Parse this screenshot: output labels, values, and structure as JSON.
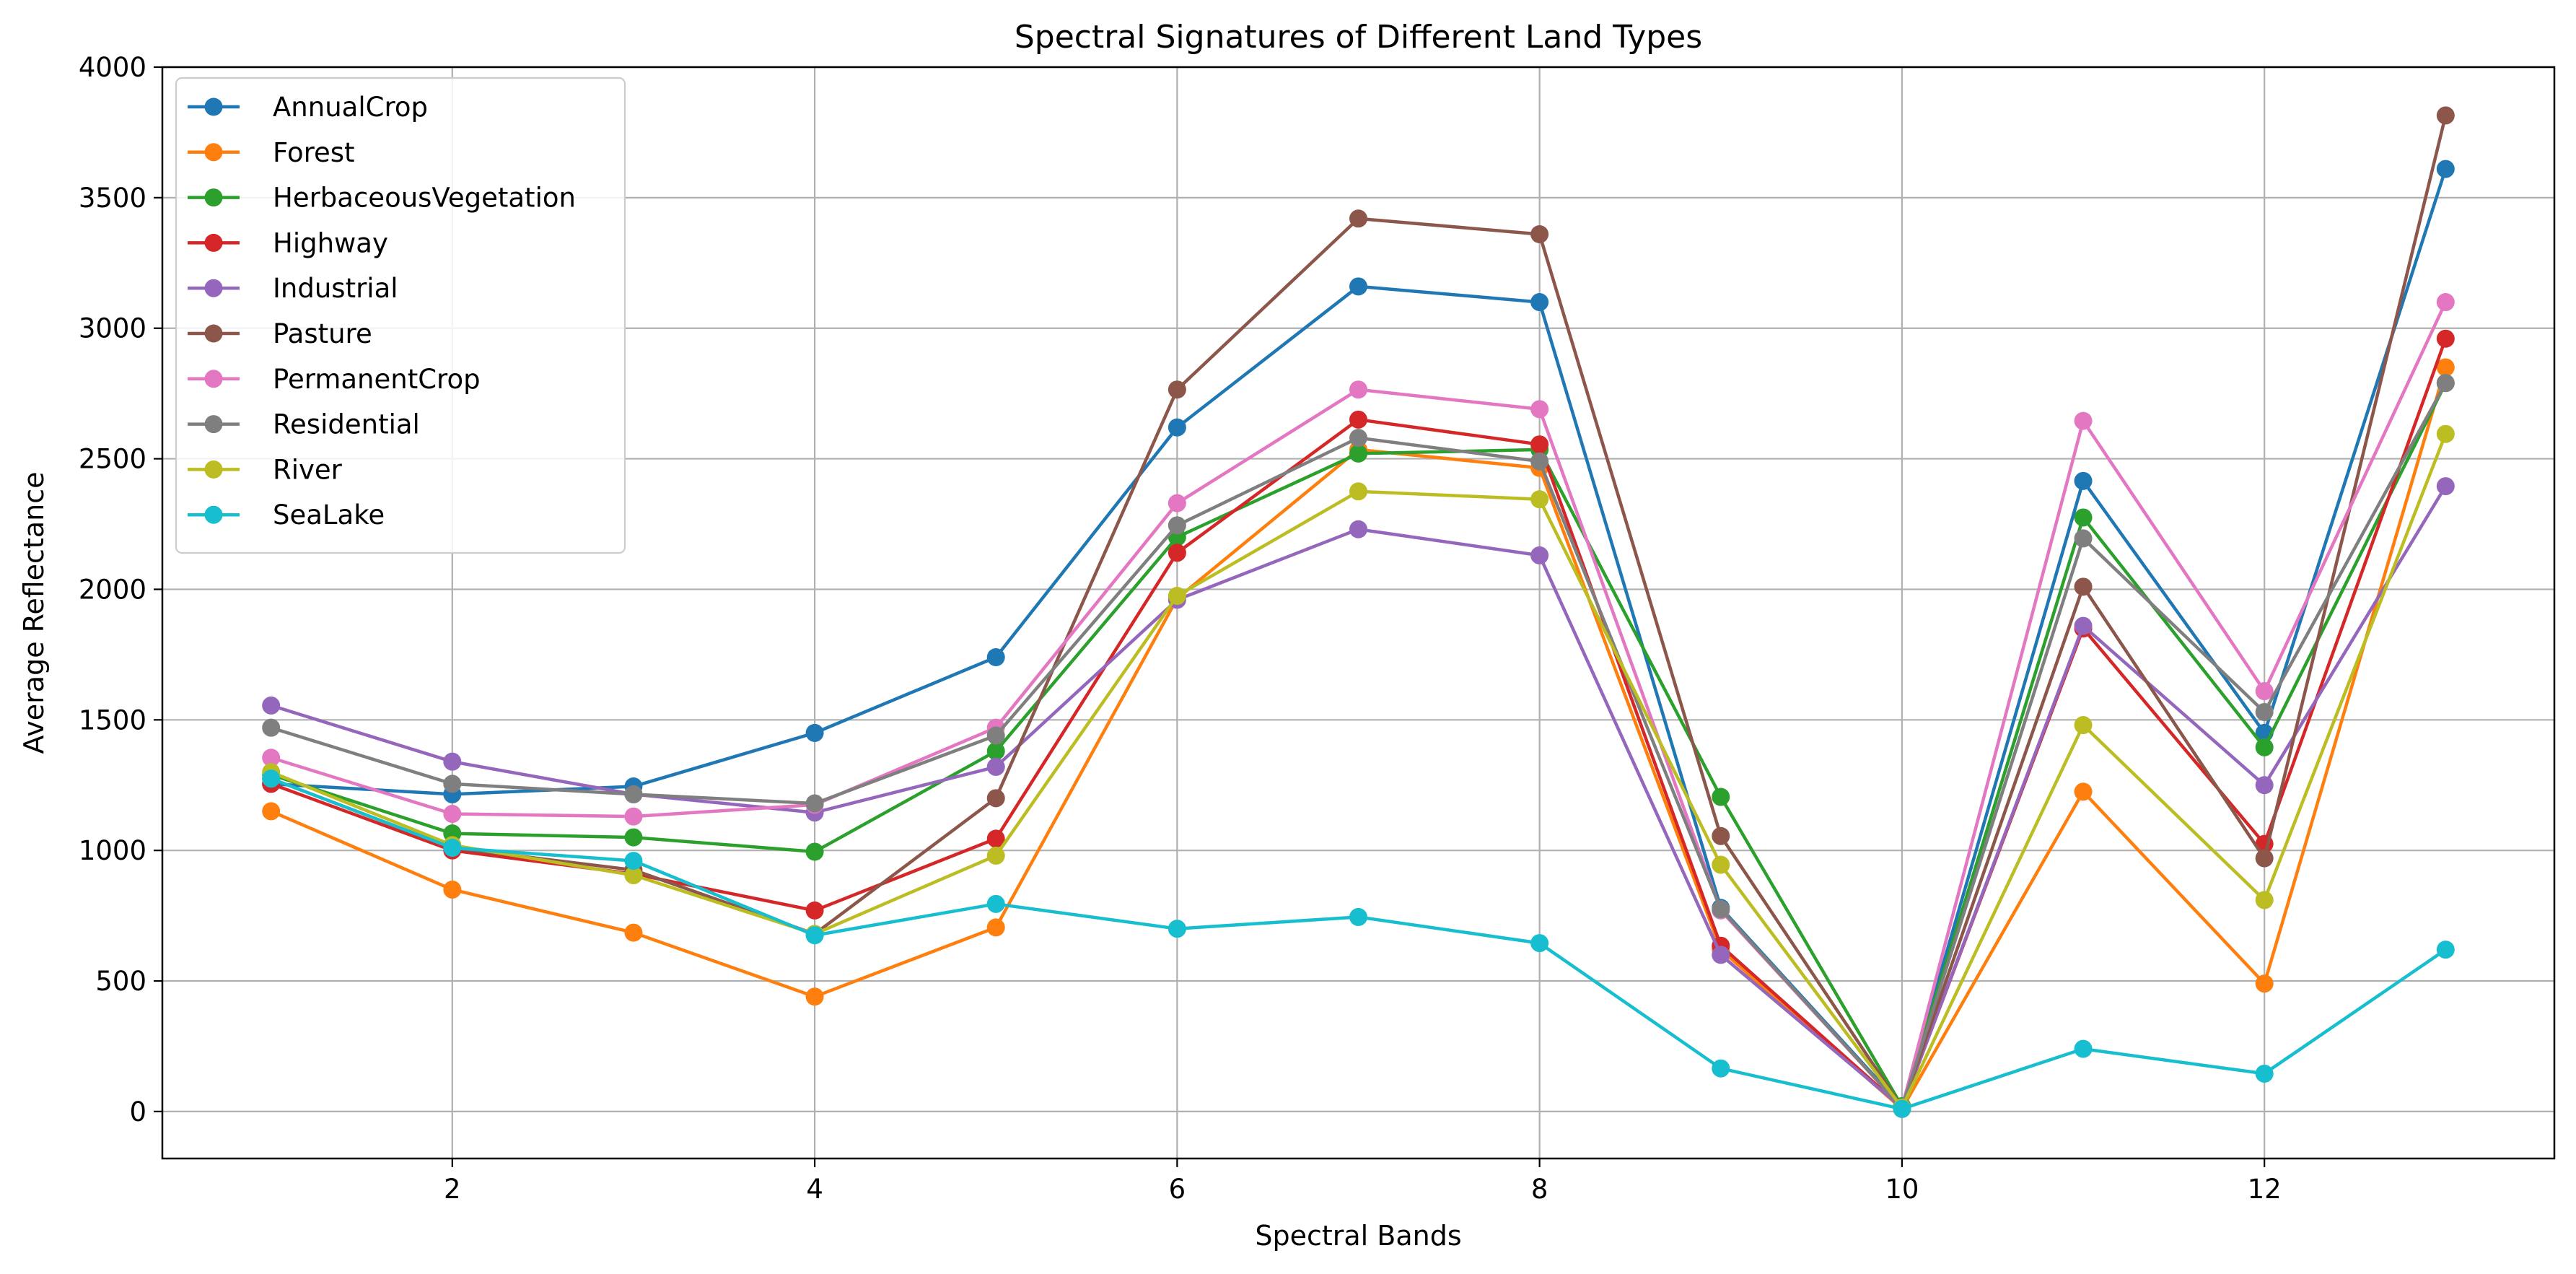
{
  "chart_data": {
    "type": "line",
    "title": "Spectral Signatures of Different Land Types",
    "xlabel": "Spectral Bands",
    "ylabel": "Average Reflectance",
    "xlim": [
      0.4,
      13.6
    ],
    "ylim": [
      -180,
      4000
    ],
    "xticks": [
      2,
      4,
      6,
      8,
      10,
      12
    ],
    "yticks": [
      0,
      500,
      1000,
      1500,
      2000,
      2500,
      3000,
      3500,
      4000
    ],
    "grid": true,
    "legend_position": "top-left",
    "x": [
      1,
      2,
      3,
      4,
      5,
      6,
      7,
      8,
      9,
      10,
      11,
      12,
      13
    ],
    "series": [
      {
        "name": "AnnualCrop",
        "color": "#1f77b4",
        "values": [
          1255,
          1215,
          1245,
          1450,
          1740,
          2620,
          3160,
          3100,
          780,
          20,
          2415,
          1450,
          3610
        ]
      },
      {
        "name": "Forest",
        "color": "#ff7f0e",
        "values": [
          1150,
          850,
          685,
          440,
          705,
          1965,
          2535,
          2465,
          620,
          10,
          1225,
          490,
          2850
        ]
      },
      {
        "name": "HerbaceousVegetation",
        "color": "#2ca02c",
        "values": [
          1290,
          1065,
          1050,
          995,
          1380,
          2200,
          2520,
          2535,
          1205,
          20,
          2275,
          1395,
          2790
        ]
      },
      {
        "name": "Highway",
        "color": "#d62728",
        "values": [
          1255,
          1000,
          910,
          770,
          1045,
          2140,
          2650,
          2555,
          635,
          15,
          1850,
          1025,
          2960
        ]
      },
      {
        "name": "Industrial",
        "color": "#9467bd",
        "values": [
          1555,
          1340,
          1215,
          1145,
          1320,
          1960,
          2230,
          2130,
          600,
          15,
          1860,
          1250,
          2395
        ]
      },
      {
        "name": "Pasture",
        "color": "#8c564b",
        "values": [
          1275,
          1010,
          925,
          680,
          1200,
          2765,
          3420,
          3360,
          1055,
          15,
          2010,
          970,
          3815
        ]
      },
      {
        "name": "PermanentCrop",
        "color": "#e377c2",
        "values": [
          1355,
          1140,
          1130,
          1175,
          1470,
          2330,
          2765,
          2690,
          770,
          15,
          2645,
          1610,
          3100
        ]
      },
      {
        "name": "Residential",
        "color": "#7f7f7f",
        "values": [
          1470,
          1255,
          1215,
          1180,
          1440,
          2245,
          2580,
          2490,
          775,
          15,
          2195,
          1530,
          2790
        ]
      },
      {
        "name": "River",
        "color": "#bcbd22",
        "values": [
          1300,
          1020,
          905,
          680,
          980,
          1975,
          2375,
          2345,
          945,
          15,
          1480,
          810,
          2595
        ]
      },
      {
        "name": "SeaLake",
        "color": "#17becf",
        "values": [
          1275,
          1010,
          960,
          675,
          795,
          700,
          745,
          645,
          165,
          10,
          240,
          145,
          620
        ]
      }
    ]
  }
}
